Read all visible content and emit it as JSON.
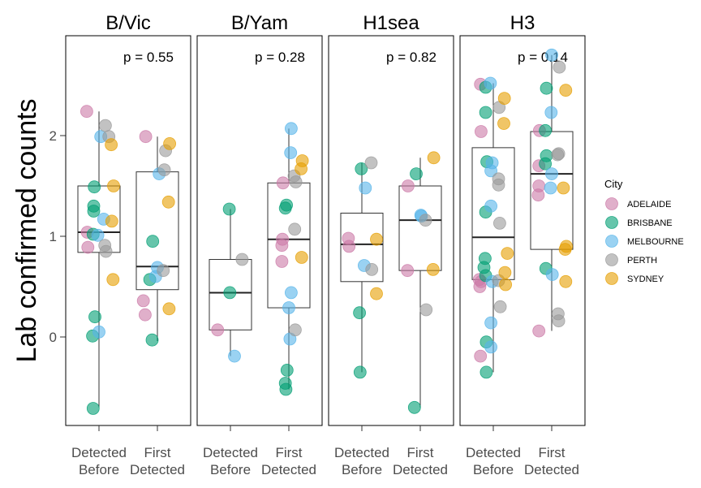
{
  "chart_data": {
    "type": "scatter",
    "subtype": "faceted boxplot with jittered points",
    "ylabel": "Lab confirmed counts",
    "ylim": [
      -0.9,
      2.9
    ],
    "y_ticks": [
      0,
      1,
      2
    ],
    "x_categories": [
      {
        "lines": [
          "Detected",
          "Before"
        ]
      },
      {
        "lines": [
          "First",
          "Detected"
        ]
      }
    ],
    "legend": {
      "title": "City",
      "placement": "right",
      "entries": [
        {
          "name": "ADELAIDE",
          "color": "#CC79A7"
        },
        {
          "name": "BRISBANE",
          "color": "#009E73"
        },
        {
          "name": "MELBOURNE",
          "color": "#56B4E9"
        },
        {
          "name": "PERTH",
          "color": "#999999"
        },
        {
          "name": "SYDNEY",
          "color": "#E69F00"
        }
      ]
    },
    "facets": [
      {
        "title": "B/Vic",
        "p_label": "p = 0.55",
        "boxes": [
          {
            "q1": 0.84,
            "median": 1.04,
            "q3": 1.5,
            "whisker_low": -0.7,
            "whisker_high": 2.24
          },
          {
            "q1": 0.47,
            "median": 0.7,
            "q3": 1.64,
            "whisker_low": -0.04,
            "whisker_high": 1.99
          }
        ],
        "points": [
          {
            "g": 0,
            "dx": -0.21,
            "y": 2.24,
            "c": 0
          },
          {
            "g": 0,
            "dx": -0.2,
            "y": 1.04,
            "c": 0
          },
          {
            "g": 0,
            "dx": -0.19,
            "y": 0.89,
            "c": 0
          },
          {
            "g": 0,
            "dx": -0.08,
            "y": 1.49,
            "c": 1
          },
          {
            "g": 0,
            "dx": -0.09,
            "y": 1.3,
            "c": 1
          },
          {
            "g": 0,
            "dx": -0.09,
            "y": 1.25,
            "c": 1
          },
          {
            "g": 0,
            "dx": -0.1,
            "y": 1.02,
            "c": 1
          },
          {
            "g": 0,
            "dx": -0.07,
            "y": 0.2,
            "c": 1
          },
          {
            "g": 0,
            "dx": -0.11,
            "y": 0.01,
            "c": 1
          },
          {
            "g": 0,
            "dx": -0.1,
            "y": -0.71,
            "c": 1
          },
          {
            "g": 0,
            "dx": 0.03,
            "y": 1.99,
            "c": 2
          },
          {
            "g": 0,
            "dx": 0.08,
            "y": 1.17,
            "c": 2
          },
          {
            "g": 0,
            "dx": -0.02,
            "y": 1.01,
            "c": 2
          },
          {
            "g": 0,
            "dx": 0.0,
            "y": 0.05,
            "c": 2
          },
          {
            "g": 0,
            "dx": 0.11,
            "y": 2.1,
            "c": 3
          },
          {
            "g": 0,
            "dx": 0.17,
            "y": 1.99,
            "c": 3
          },
          {
            "g": 0,
            "dx": 0.1,
            "y": 0.91,
            "c": 3
          },
          {
            "g": 0,
            "dx": 0.12,
            "y": 0.85,
            "c": 3
          },
          {
            "g": 0,
            "dx": 0.21,
            "y": 1.91,
            "c": 4
          },
          {
            "g": 0,
            "dx": 0.25,
            "y": 1.5,
            "c": 4
          },
          {
            "g": 0,
            "dx": 0.22,
            "y": 1.15,
            "c": 4
          },
          {
            "g": 0,
            "dx": 0.24,
            "y": 0.57,
            "c": 4
          },
          {
            "g": 1,
            "dx": -0.2,
            "y": 1.99,
            "c": 0
          },
          {
            "g": 1,
            "dx": -0.24,
            "y": 0.36,
            "c": 0
          },
          {
            "g": 1,
            "dx": -0.21,
            "y": 0.22,
            "c": 0
          },
          {
            "g": 1,
            "dx": -0.08,
            "y": 0.95,
            "c": 1
          },
          {
            "g": 1,
            "dx": -0.13,
            "y": 0.57,
            "c": 1
          },
          {
            "g": 1,
            "dx": -0.09,
            "y": -0.03,
            "c": 1
          },
          {
            "g": 1,
            "dx": 0.03,
            "y": 1.62,
            "c": 2
          },
          {
            "g": 1,
            "dx": 0.0,
            "y": 0.69,
            "c": 2
          },
          {
            "g": 1,
            "dx": -0.03,
            "y": 0.6,
            "c": 2
          },
          {
            "g": 1,
            "dx": 0.14,
            "y": 1.85,
            "c": 3
          },
          {
            "g": 1,
            "dx": 0.12,
            "y": 1.66,
            "c": 3
          },
          {
            "g": 1,
            "dx": 0.1,
            "y": 0.66,
            "c": 3
          },
          {
            "g": 1,
            "dx": 0.21,
            "y": 1.92,
            "c": 4
          },
          {
            "g": 1,
            "dx": 0.19,
            "y": 1.34,
            "c": 4
          },
          {
            "g": 1,
            "dx": 0.2,
            "y": 0.28,
            "c": 4
          }
        ]
      },
      {
        "title": "B/Yam",
        "p_label": "p = 0.28",
        "boxes": [
          {
            "q1": 0.07,
            "median": 0.44,
            "q3": 0.77,
            "whisker_low": -0.19,
            "whisker_high": 1.27
          },
          {
            "q1": 0.29,
            "median": 0.97,
            "q3": 1.53,
            "whisker_low": -0.52,
            "whisker_high": 2.07
          }
        ],
        "points": [
          {
            "g": 0,
            "dx": -0.22,
            "y": 0.07,
            "c": 0
          },
          {
            "g": 0,
            "dx": -0.02,
            "y": 1.27,
            "c": 1
          },
          {
            "g": 0,
            "dx": -0.01,
            "y": 0.44,
            "c": 1
          },
          {
            "g": 0,
            "dx": 0.07,
            "y": -0.19,
            "c": 2
          },
          {
            "g": 0,
            "dx": 0.2,
            "y": 0.77,
            "c": 3
          },
          {
            "g": 1,
            "dx": -0.1,
            "y": 1.53,
            "c": 0
          },
          {
            "g": 1,
            "dx": -0.11,
            "y": 0.97,
            "c": 0
          },
          {
            "g": 1,
            "dx": -0.12,
            "y": 0.91,
            "c": 0
          },
          {
            "g": 1,
            "dx": -0.12,
            "y": 0.75,
            "c": 0
          },
          {
            "g": 1,
            "dx": -0.04,
            "y": 1.31,
            "c": 1
          },
          {
            "g": 1,
            "dx": -0.06,
            "y": 1.28,
            "c": 1
          },
          {
            "g": 1,
            "dx": -0.03,
            "y": -0.33,
            "c": 1
          },
          {
            "g": 1,
            "dx": -0.06,
            "y": -0.46,
            "c": 1
          },
          {
            "g": 1,
            "dx": -0.05,
            "y": -0.52,
            "c": 1
          },
          {
            "g": 1,
            "dx": 0.04,
            "y": 2.07,
            "c": 2
          },
          {
            "g": 1,
            "dx": 0.03,
            "y": 1.83,
            "c": 2
          },
          {
            "g": 1,
            "dx": 0.04,
            "y": 0.44,
            "c": 2
          },
          {
            "g": 1,
            "dx": 0.0,
            "y": 0.29,
            "c": 2
          },
          {
            "g": 1,
            "dx": 0.02,
            "y": -0.02,
            "c": 2
          },
          {
            "g": 1,
            "dx": 0.09,
            "y": 1.6,
            "c": 3
          },
          {
            "g": 1,
            "dx": 0.12,
            "y": 1.54,
            "c": 3
          },
          {
            "g": 1,
            "dx": 0.1,
            "y": 1.07,
            "c": 3
          },
          {
            "g": 1,
            "dx": 0.11,
            "y": 0.07,
            "c": 3
          },
          {
            "g": 1,
            "dx": 0.23,
            "y": 1.75,
            "c": 4
          },
          {
            "g": 1,
            "dx": 0.21,
            "y": 1.67,
            "c": 4
          },
          {
            "g": 1,
            "dx": 0.22,
            "y": 0.79,
            "c": 4
          }
        ]
      },
      {
        "title": "H1sea",
        "p_label": "p = 0.82",
        "boxes": [
          {
            "q1": 0.55,
            "median": 0.92,
            "q3": 1.23,
            "whisker_low": -0.35,
            "whisker_high": 1.73
          },
          {
            "q1": 0.66,
            "median": 1.16,
            "q3": 1.5,
            "whisker_low": -0.7,
            "whisker_high": 1.78
          }
        ],
        "points": [
          {
            "g": 0,
            "dx": -0.23,
            "y": 0.98,
            "c": 0
          },
          {
            "g": 0,
            "dx": -0.22,
            "y": 0.9,
            "c": 0
          },
          {
            "g": 0,
            "dx": -0.01,
            "y": 1.67,
            "c": 1
          },
          {
            "g": 0,
            "dx": -0.04,
            "y": 0.24,
            "c": 1
          },
          {
            "g": 0,
            "dx": -0.03,
            "y": -0.35,
            "c": 1
          },
          {
            "g": 0,
            "dx": 0.06,
            "y": 1.48,
            "c": 2
          },
          {
            "g": 0,
            "dx": 0.04,
            "y": 0.71,
            "c": 2
          },
          {
            "g": 0,
            "dx": 0.16,
            "y": 1.73,
            "c": 3
          },
          {
            "g": 0,
            "dx": 0.17,
            "y": 0.67,
            "c": 3
          },
          {
            "g": 0,
            "dx": 0.25,
            "y": 0.97,
            "c": 4
          },
          {
            "g": 0,
            "dx": 0.25,
            "y": 0.43,
            "c": 4
          },
          {
            "g": 1,
            "dx": -0.21,
            "y": 1.5,
            "c": 0
          },
          {
            "g": 1,
            "dx": -0.22,
            "y": 0.66,
            "c": 0
          },
          {
            "g": 1,
            "dx": -0.07,
            "y": 1.62,
            "c": 1
          },
          {
            "g": 1,
            "dx": -0.1,
            "y": -0.7,
            "c": 1
          },
          {
            "g": 1,
            "dx": 0.01,
            "y": 1.21,
            "c": 2
          },
          {
            "g": 1,
            "dx": 0.02,
            "y": 1.2,
            "c": 2
          },
          {
            "g": 1,
            "dx": 0.09,
            "y": 1.16,
            "c": 3
          },
          {
            "g": 1,
            "dx": 0.1,
            "y": 0.27,
            "c": 3
          },
          {
            "g": 1,
            "dx": 0.23,
            "y": 1.78,
            "c": 4
          },
          {
            "g": 1,
            "dx": 0.22,
            "y": 0.67,
            "c": 4
          }
        ]
      },
      {
        "title": "H3",
        "p_label": "p = 0.14",
        "boxes": [
          {
            "q1": 0.57,
            "median": 0.99,
            "q3": 1.88,
            "whisker_low": -0.35,
            "whisker_high": 2.52
          },
          {
            "q1": 0.87,
            "median": 1.62,
            "q3": 2.04,
            "whisker_low": 0.06,
            "whisker_high": 2.8
          }
        ],
        "points": [
          {
            "g": 0,
            "dx": -0.22,
            "y": 2.51,
            "c": 0
          },
          {
            "g": 0,
            "dx": -0.21,
            "y": 2.04,
            "c": 0
          },
          {
            "g": 0,
            "dx": -0.24,
            "y": 0.57,
            "c": 0
          },
          {
            "g": 0,
            "dx": -0.21,
            "y": 0.55,
            "c": 0
          },
          {
            "g": 0,
            "dx": -0.23,
            "y": 0.5,
            "c": 0
          },
          {
            "g": 0,
            "dx": -0.22,
            "y": -0.19,
            "c": 0
          },
          {
            "g": 0,
            "dx": -0.13,
            "y": 2.48,
            "c": 1
          },
          {
            "g": 0,
            "dx": -0.13,
            "y": 2.23,
            "c": 1
          },
          {
            "g": 0,
            "dx": -0.11,
            "y": 1.74,
            "c": 1
          },
          {
            "g": 0,
            "dx": -0.13,
            "y": 1.24,
            "c": 1
          },
          {
            "g": 0,
            "dx": -0.14,
            "y": 0.78,
            "c": 1
          },
          {
            "g": 0,
            "dx": -0.16,
            "y": 0.69,
            "c": 1
          },
          {
            "g": 0,
            "dx": -0.13,
            "y": 0.61,
            "c": 1
          },
          {
            "g": 0,
            "dx": -0.12,
            "y": -0.05,
            "c": 1
          },
          {
            "g": 0,
            "dx": -0.12,
            "y": -0.35,
            "c": 1
          },
          {
            "g": 0,
            "dx": -0.05,
            "y": 2.52,
            "c": 2
          },
          {
            "g": 0,
            "dx": -0.02,
            "y": 1.73,
            "c": 2
          },
          {
            "g": 0,
            "dx": -0.04,
            "y": 1.65,
            "c": 2
          },
          {
            "g": 0,
            "dx": -0.04,
            "y": 1.3,
            "c": 2
          },
          {
            "g": 0,
            "dx": -0.02,
            "y": 0.55,
            "c": 2
          },
          {
            "g": 0,
            "dx": -0.04,
            "y": 0.14,
            "c": 2
          },
          {
            "g": 0,
            "dx": -0.04,
            "y": -0.1,
            "c": 2
          },
          {
            "g": 0,
            "dx": 0.1,
            "y": 2.28,
            "c": 3
          },
          {
            "g": 0,
            "dx": 0.09,
            "y": 1.57,
            "c": 3
          },
          {
            "g": 0,
            "dx": 0.09,
            "y": 1.51,
            "c": 3
          },
          {
            "g": 0,
            "dx": 0.11,
            "y": 1.13,
            "c": 3
          },
          {
            "g": 0,
            "dx": 0.09,
            "y": 0.56,
            "c": 3
          },
          {
            "g": 0,
            "dx": 0.12,
            "y": 0.3,
            "c": 3
          },
          {
            "g": 0,
            "dx": 0.19,
            "y": 2.37,
            "c": 4
          },
          {
            "g": 0,
            "dx": 0.18,
            "y": 2.12,
            "c": 4
          },
          {
            "g": 0,
            "dx": 0.24,
            "y": 0.83,
            "c": 4
          },
          {
            "g": 0,
            "dx": 0.2,
            "y": 0.64,
            "c": 4
          },
          {
            "g": 0,
            "dx": 0.21,
            "y": 0.52,
            "c": 4
          },
          {
            "g": 1,
            "dx": -0.21,
            "y": 2.05,
            "c": 0
          },
          {
            "g": 1,
            "dx": -0.22,
            "y": 1.7,
            "c": 0
          },
          {
            "g": 1,
            "dx": -0.22,
            "y": 1.5,
            "c": 0
          },
          {
            "g": 1,
            "dx": -0.23,
            "y": 1.41,
            "c": 0
          },
          {
            "g": 1,
            "dx": -0.22,
            "y": 0.06,
            "c": 0
          },
          {
            "g": 1,
            "dx": -0.09,
            "y": 2.47,
            "c": 1
          },
          {
            "g": 1,
            "dx": -0.11,
            "y": 2.05,
            "c": 1
          },
          {
            "g": 1,
            "dx": -0.09,
            "y": 1.8,
            "c": 1
          },
          {
            "g": 1,
            "dx": -0.11,
            "y": 1.72,
            "c": 1
          },
          {
            "g": 1,
            "dx": -0.1,
            "y": 0.68,
            "c": 1
          },
          {
            "g": 1,
            "dx": 0.0,
            "y": 2.8,
            "c": 2
          },
          {
            "g": 1,
            "dx": -0.01,
            "y": 2.23,
            "c": 2
          },
          {
            "g": 1,
            "dx": 0.0,
            "y": 1.62,
            "c": 2
          },
          {
            "g": 1,
            "dx": -0.02,
            "y": 1.48,
            "c": 2
          },
          {
            "g": 1,
            "dx": 0.01,
            "y": 0.62,
            "c": 2
          },
          {
            "g": 1,
            "dx": 0.13,
            "y": 2.68,
            "c": 3
          },
          {
            "g": 1,
            "dx": 0.12,
            "y": 1.82,
            "c": 3
          },
          {
            "g": 1,
            "dx": 0.1,
            "y": 1.81,
            "c": 3
          },
          {
            "g": 1,
            "dx": 0.11,
            "y": 0.23,
            "c": 3
          },
          {
            "g": 1,
            "dx": 0.12,
            "y": 0.16,
            "c": 3
          },
          {
            "g": 1,
            "dx": 0.24,
            "y": 2.45,
            "c": 4
          },
          {
            "g": 1,
            "dx": 0.2,
            "y": 1.48,
            "c": 4
          },
          {
            "g": 1,
            "dx": 0.25,
            "y": 0.9,
            "c": 4
          },
          {
            "g": 1,
            "dx": 0.23,
            "y": 0.87,
            "c": 4
          },
          {
            "g": 1,
            "dx": 0.24,
            "y": 0.55,
            "c": 4
          }
        ]
      }
    ]
  }
}
